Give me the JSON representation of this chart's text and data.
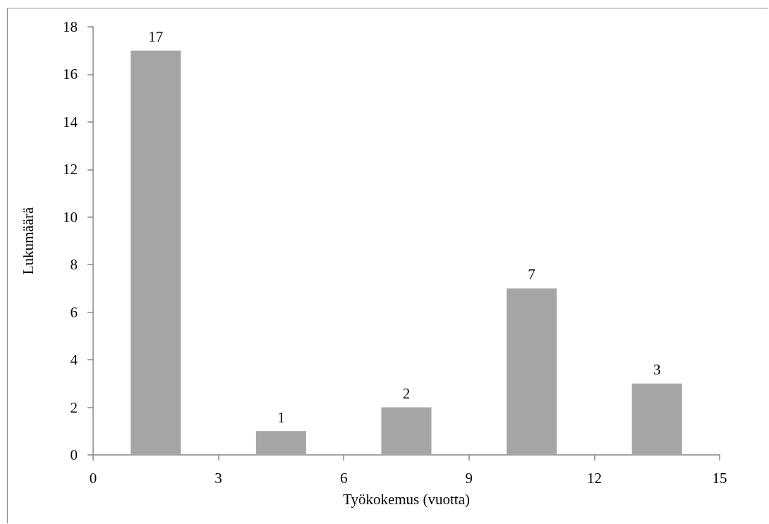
{
  "chart_data": {
    "type": "bar",
    "x": [
      1.5,
      4.5,
      7.5,
      10.5,
      13.5
    ],
    "values": [
      17,
      1,
      2,
      7,
      3
    ],
    "color": "#a5a5a5",
    "data_labels": true,
    "xlabel": "Työkokemus (vuotta)",
    "ylabel": "Lukumäärä",
    "xlim": [
      0,
      15
    ],
    "xticks": [
      0,
      3,
      6,
      9,
      12,
      15
    ],
    "ylim": [
      0,
      18
    ],
    "yticks": [
      0,
      2,
      4,
      6,
      8,
      10,
      12,
      14,
      16,
      18
    ]
  }
}
